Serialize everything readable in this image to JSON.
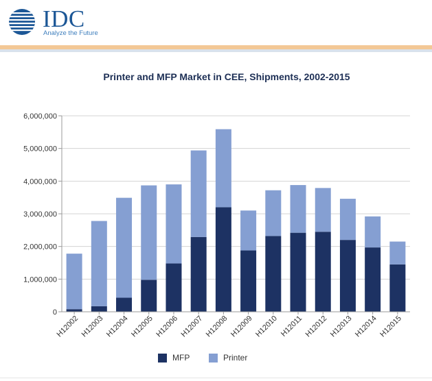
{
  "header": {
    "logo_text": "IDC",
    "tagline": "Analyze the Future",
    "colors": {
      "brand": "#1c5796",
      "accent_bar": "#f3c896"
    }
  },
  "chart_data": {
    "type": "bar",
    "stacked": true,
    "title": "Printer and MFP Market in CEE, Shipments, 2002-2015",
    "xlabel": "",
    "ylabel": "",
    "categories": [
      "H12002",
      "H12003",
      "H12004",
      "H12005",
      "H12006",
      "H12007",
      "H12008",
      "H12009",
      "H12010",
      "H12011",
      "H12012",
      "H12013",
      "H12014",
      "H12015"
    ],
    "series": [
      {
        "name": "MFP",
        "color": "#1d3263",
        "values": [
          80000,
          170000,
          430000,
          980000,
          1480000,
          2290000,
          3200000,
          1880000,
          2320000,
          2420000,
          2450000,
          2200000,
          1970000,
          1450000
        ]
      },
      {
        "name": "Printer",
        "color": "#859fd2",
        "values": [
          1700000,
          2610000,
          3060000,
          2890000,
          2420000,
          2650000,
          2390000,
          1220000,
          1400000,
          1460000,
          1340000,
          1260000,
          950000,
          700000
        ]
      }
    ],
    "ylim": [
      0,
      6000000
    ],
    "yticks": [
      "0",
      "1,000,000",
      "2,000,000",
      "3,000,000",
      "4,000,000",
      "5,000,000",
      "6,000,000"
    ],
    "grid": true,
    "legend": "bottom"
  }
}
